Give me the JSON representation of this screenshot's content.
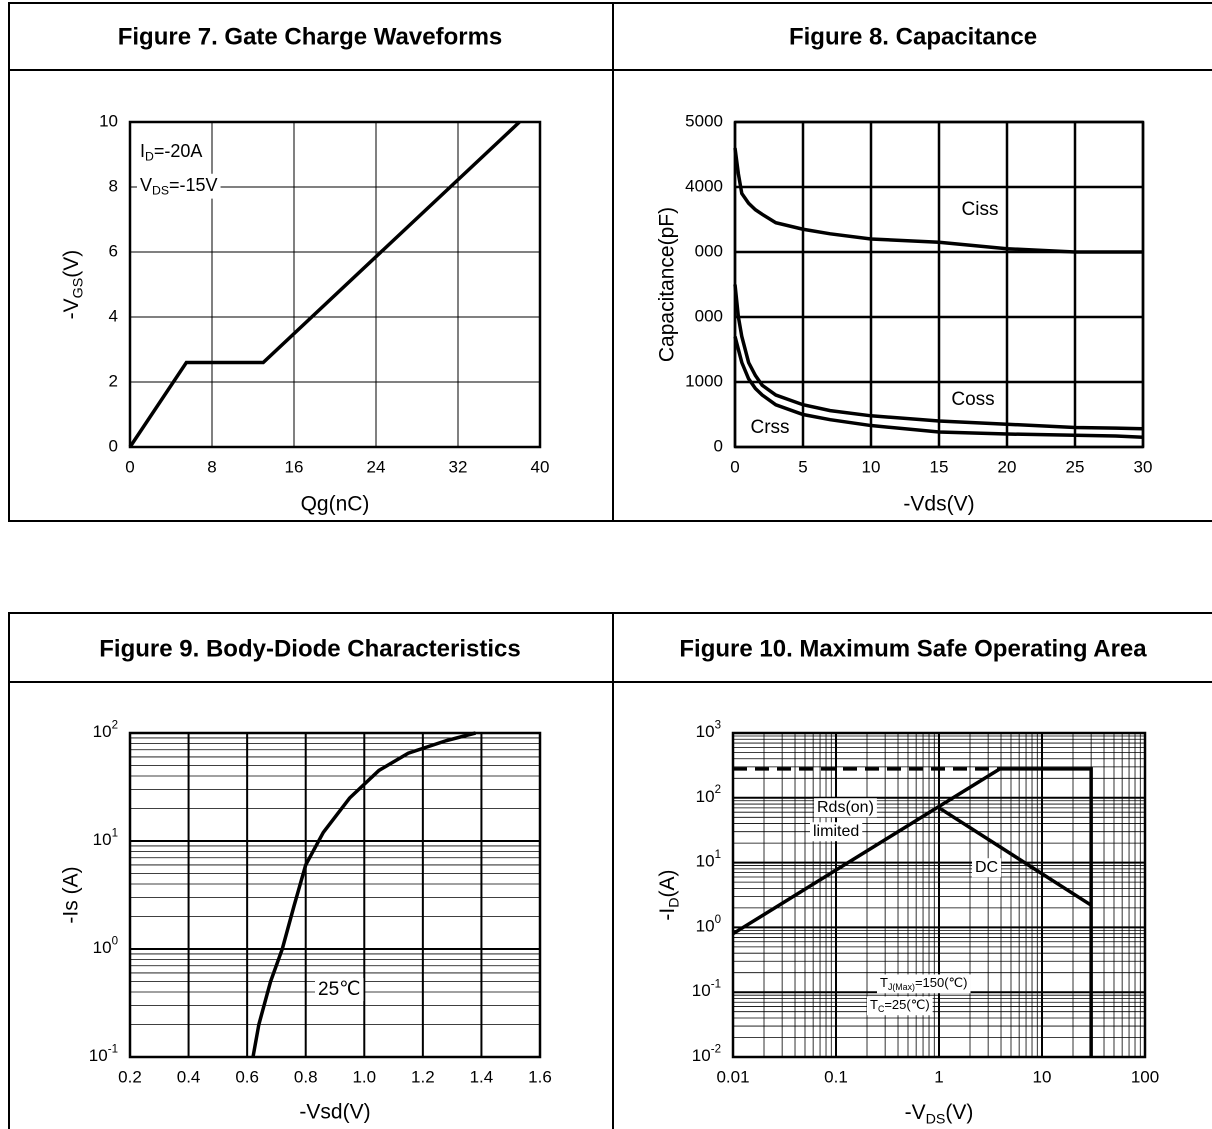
{
  "chart_data": [
    {
      "type": "line",
      "title": "Figure 7. Gate Charge Waveforms",
      "xlabel": "Qg(nC)",
      "ylabel": [
        "-V",
        "GS",
        "(V)"
      ],
      "xlim": [
        0,
        40
      ],
      "xticks": [
        0,
        8,
        16,
        24,
        32,
        40
      ],
      "ylim": [
        0,
        10
      ],
      "yticks": [
        0,
        2,
        4,
        6,
        8,
        10
      ],
      "grid": true,
      "annotations": [
        [
          "I",
          "D",
          "=-20A"
        ],
        [
          "V",
          "DS",
          "=-15V"
        ]
      ],
      "series": [
        {
          "color": "#000000",
          "x": [
            0,
            5.5,
            13,
            38
          ],
          "values": [
            0,
            2.6,
            2.6,
            10
          ]
        }
      ]
    },
    {
      "type": "line",
      "title": "Figure 8. Capacitance",
      "xlabel": "-Vds(V)",
      "ylabel": "Capacitance(pF)",
      "xlim": [
        0,
        30
      ],
      "xticks": [
        0,
        5,
        10,
        15,
        20,
        25,
        30
      ],
      "ylim": [
        0,
        5000
      ],
      "yticks": [
        0,
        1000,
        {
          "value": 2000,
          "label": "000"
        },
        {
          "value": 3000,
          "label": "000"
        },
        4000,
        5000
      ],
      "grid": true,
      "x": [
        0,
        0.25,
        0.5,
        1,
        1.5,
        2,
        3,
        5,
        7,
        10,
        15,
        20,
        25,
        28,
        30
      ],
      "series": [
        {
          "name": "Ciss",
          "color": "#000000",
          "values": [
            4600,
            4200,
            3900,
            3750,
            3650,
            3580,
            3450,
            3350,
            3280,
            3200,
            3150,
            3050,
            3000,
            3000,
            3000
          ]
        },
        {
          "name": "Coss",
          "color": "#000000",
          "values": [
            2500,
            2000,
            1700,
            1300,
            1100,
            950,
            800,
            650,
            560,
            480,
            400,
            350,
            300,
            290,
            280
          ]
        },
        {
          "name": "Crss",
          "color": "#000000",
          "values": [
            1700,
            1500,
            1300,
            1050,
            900,
            800,
            650,
            500,
            420,
            330,
            230,
            200,
            180,
            170,
            150
          ]
        }
      ]
    },
    {
      "type": "line",
      "title": "Figure 9. Body-Diode Characteristics",
      "xlabel": "-Vsd(V)",
      "ylabel": "-Is (A)",
      "xlim": [
        0.2,
        1.6
      ],
      "xticks": [
        0.2,
        0.4,
        0.6,
        0.8,
        {
          "value": 1,
          "label": "1.0"
        },
        1.2,
        1.4,
        1.6
      ],
      "ylim": [
        0.1,
        100
      ],
      "ylog": true,
      "yticks": [
        {
          "value": 0.1,
          "label": [
            "10",
            "-1"
          ]
        },
        {
          "value": 1,
          "label": [
            "10",
            "0"
          ]
        },
        {
          "value": 10,
          "label": [
            "10",
            "1"
          ]
        },
        {
          "value": 100,
          "label": [
            "10",
            "2"
          ]
        }
      ],
      "grid": true,
      "annotations": [
        [
          "25℃"
        ]
      ],
      "series": [
        {
          "color": "#000000",
          "x": [
            0.62,
            0.64,
            0.68,
            0.72,
            0.76,
            0.8,
            0.86,
            0.95,
            1.05,
            1.15,
            1.28,
            1.38
          ],
          "values": [
            0.1,
            0.2,
            0.5,
            1,
            2.5,
            6,
            12,
            25,
            45,
            65,
            85,
            100
          ]
        }
      ]
    },
    {
      "type": "line",
      "title": "Figure 10. Maximum Safe Operating Area",
      "xlabel": [
        "-V",
        "DS",
        "(V)"
      ],
      "ylabel": [
        "-I",
        "D",
        "(A)"
      ],
      "xlim": [
        0.01,
        100
      ],
      "xlog": true,
      "xticks": [
        0.01,
        0.1,
        1,
        10,
        100
      ],
      "ylim": [
        0.01,
        1000
      ],
      "ylog": true,
      "yticks": [
        {
          "value": 0.01,
          "label": [
            "10",
            "-2"
          ]
        },
        {
          "value": 0.1,
          "label": [
            "10",
            "-1"
          ]
        },
        {
          "value": 1,
          "label": [
            "10",
            "0"
          ]
        },
        {
          "value": 10,
          "label": [
            "10",
            "1"
          ]
        },
        {
          "value": 100,
          "label": [
            "10",
            "2"
          ]
        },
        {
          "value": 1000,
          "label": [
            "10",
            "3"
          ]
        }
      ],
      "grid": true,
      "annotations": [
        [
          "Rds(on)"
        ],
        [
          "limited"
        ],
        [
          "DC"
        ],
        [
          "T",
          "J(Max)",
          "=150(℃)"
        ],
        [
          "T",
          "C",
          "=25(℃)"
        ]
      ],
      "series": [
        {
          "color": "#000000",
          "x": [
            0.01,
            3.9,
            30,
            30
          ],
          "values": [
            0.8,
            280,
            280,
            0.01
          ]
        },
        {
          "color": "#000000",
          "x": [
            1,
            30
          ],
          "values": [
            70,
            2.2
          ]
        },
        {
          "color": "#000000",
          "dashed": true,
          "x": [
            0.01,
            3.9
          ],
          "values": [
            280,
            280
          ]
        }
      ]
    }
  ]
}
